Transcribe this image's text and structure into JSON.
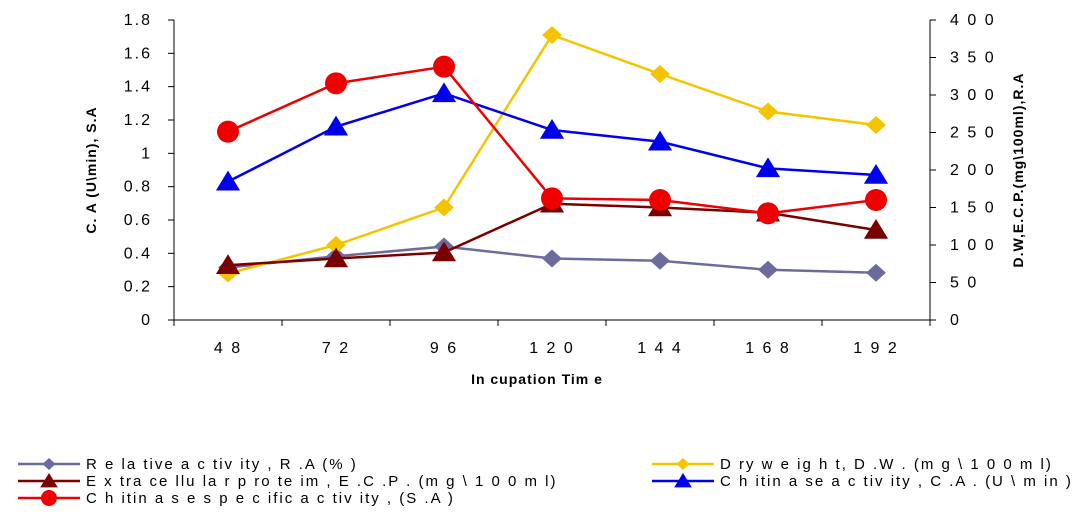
{
  "chart_data": {
    "type": "line",
    "categories": [
      "48",
      "72",
      "96",
      "120",
      "144",
      "168",
      "192"
    ],
    "xlabel": "In cupation Tim e",
    "ylabel_left": "C. A (U\\min), S.A",
    "ylabel_right": "D.W,E.C.P.(mg\\100ml),R.A",
    "ylim_left": [
      0,
      1.8
    ],
    "ylim_right": [
      0,
      400
    ],
    "left_ticks": [
      "0",
      "0.2",
      "0.4",
      "0.6",
      "0.8",
      "1",
      "1.2",
      "1.4",
      "1.6",
      "1.8"
    ],
    "right_ticks": [
      "0",
      "5 0",
      "1 0 0",
      "1 5 0",
      "2 0 0",
      "2 5 0",
      "3 0 0",
      "3 5 0",
      "4 0 0"
    ],
    "grid": false,
    "legend_position": "bottom",
    "series": [
      {
        "name": "R e la tive a c tiv ity , R .A (% )",
        "axis": "right",
        "marker": "diamond",
        "color": "#6b6b9e",
        "values": [
          70,
          85,
          98,
          82,
          79,
          67,
          63
        ]
      },
      {
        "name": "D ry w e ig h t, D .W . (m g \\ 1 0 0 m l)",
        "axis": "right",
        "marker": "diamond",
        "color": "#f5c400",
        "values": [
          62,
          100,
          150,
          380,
          328,
          278,
          260
        ]
      },
      {
        "name": "E x tra ce llu la r p ro te im , E .C .P . (m g \\ 1 0 0 m l)",
        "axis": "right",
        "marker": "triangle",
        "color": "#7a0000",
        "values": [
          73,
          82,
          90,
          155,
          150,
          143,
          120
        ]
      },
      {
        "name": "C h itin a se a c tiv ity , C .A . (U \\ m in )",
        "axis": "left",
        "marker": "triangle",
        "color": "#0000ee",
        "values": [
          0.83,
          1.16,
          1.36,
          1.14,
          1.07,
          0.91,
          0.87
        ]
      },
      {
        "name": "C h itin a s e s p e c ific a c tiv ity , (S .A )",
        "axis": "left",
        "marker": "circle",
        "color": "#ee0000",
        "values": [
          1.13,
          1.42,
          1.52,
          0.73,
          0.72,
          0.64,
          0.72
        ]
      }
    ]
  }
}
